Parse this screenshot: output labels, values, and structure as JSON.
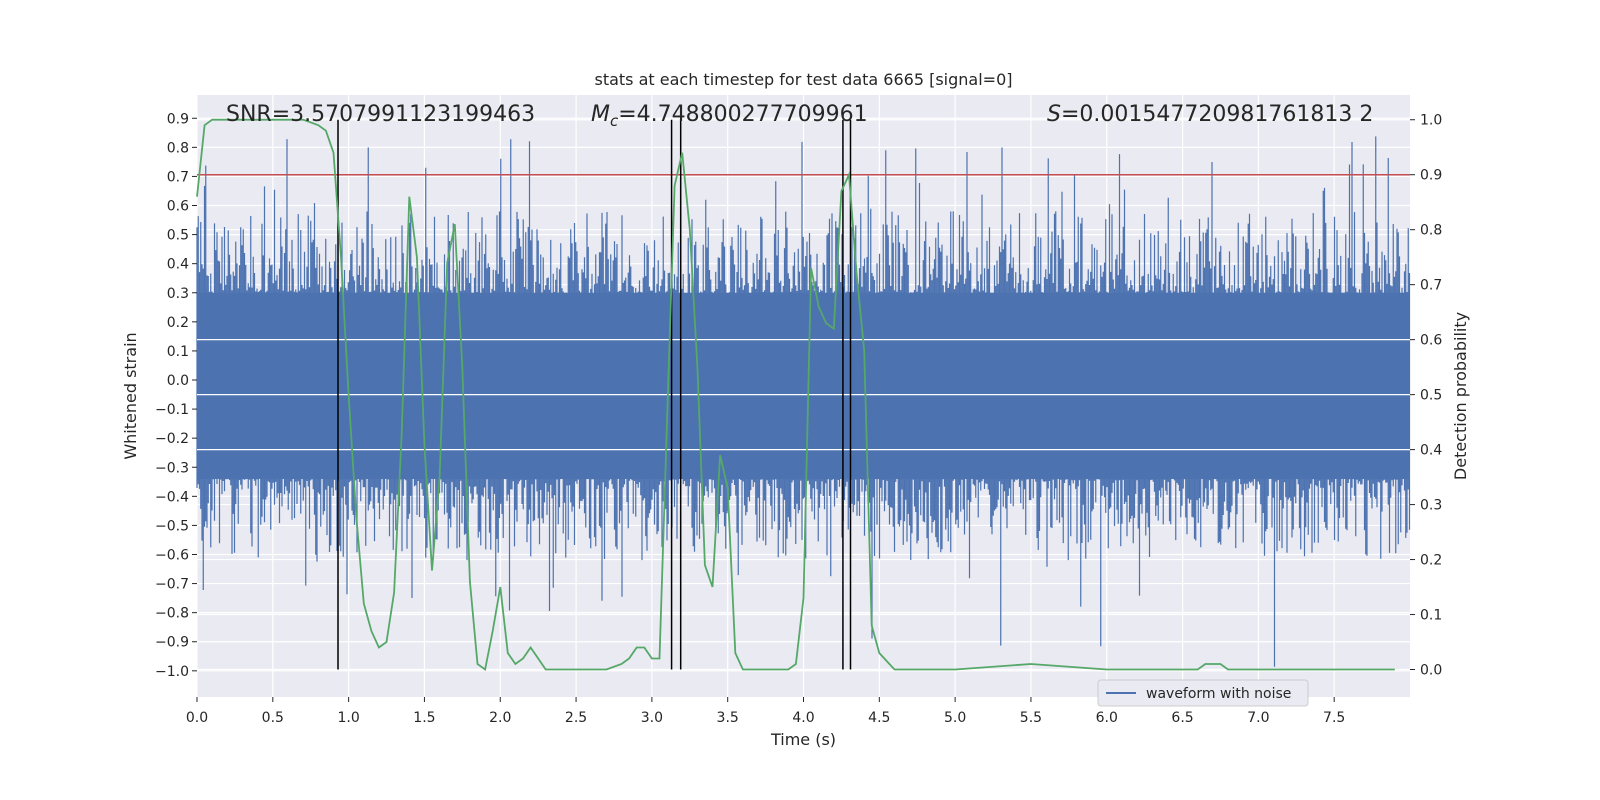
{
  "chart_data": {
    "type": "line",
    "title": "stats at each timestep for test data 6665 [signal=0]",
    "xlabel": "Time (s)",
    "ylabel": "Whitened strain",
    "y2label": "Detection probability",
    "xlim": [
      0.0,
      8.0
    ],
    "ylim": [
      -1.09,
      0.98
    ],
    "y2lim": [
      -0.05,
      1.045
    ],
    "xticks": [
      "0.0",
      "0.5",
      "1.0",
      "1.5",
      "2.0",
      "2.5",
      "3.0",
      "3.5",
      "4.0",
      "4.5",
      "5.0",
      "5.5",
      "6.0",
      "6.5",
      "7.0",
      "7.5"
    ],
    "yticks": [
      "0.9",
      "0.8",
      "0.7",
      "0.6",
      "0.5",
      "0.4",
      "0.3",
      "0.2",
      "0.1",
      "0.0",
      "-0.1",
      "-0.2",
      "-0.3",
      "-0.4",
      "-0.5",
      "-0.6",
      "-0.7",
      "-0.8",
      "-0.9",
      "-1.0"
    ],
    "y2ticks": [
      "1.0",
      "0.9",
      "0.8",
      "0.7",
      "0.6",
      "0.5",
      "0.4",
      "0.3",
      "0.2",
      "0.1",
      "0.0"
    ],
    "grid": true,
    "legend_position": "lower-right",
    "annotations": {
      "snr": "SNR=3.5707991123199463",
      "mc_prefix": "M",
      "mc_sub": "c",
      "mc_value": "=4.748800277709961",
      "s_prefix": "S",
      "s_value": "=0.001547720981761813 2"
    },
    "series": [
      {
        "name": "waveform with noise",
        "axis": "left",
        "color": "#4c72b0",
        "band_min": -0.34,
        "band_max": 0.3,
        "peak_max": 0.88,
        "trough_min": -1.0
      },
      {
        "axis": "right",
        "color": "#55a868",
        "x": [
          0.0,
          0.05,
          0.1,
          0.15,
          0.3,
          0.5,
          0.7,
          0.8,
          0.85,
          0.9,
          0.95,
          1.0,
          1.05,
          1.1,
          1.15,
          1.2,
          1.25,
          1.3,
          1.35,
          1.4,
          1.45,
          1.5,
          1.55,
          1.6,
          1.65,
          1.7,
          1.75,
          1.8,
          1.85,
          1.9,
          1.95,
          2.0,
          2.05,
          2.1,
          2.15,
          2.2,
          2.25,
          2.3,
          2.35,
          2.4,
          2.6,
          2.7,
          2.8,
          2.85,
          2.9,
          2.95,
          3.0,
          3.05,
          3.1,
          3.15,
          3.2,
          3.25,
          3.3,
          3.35,
          3.4,
          3.45,
          3.5,
          3.55,
          3.6,
          3.7,
          3.8,
          3.9,
          3.95,
          4.0,
          4.05,
          4.1,
          4.15,
          4.2,
          4.25,
          4.3,
          4.35,
          4.4,
          4.45,
          4.5,
          4.6,
          4.8,
          5.0,
          5.5,
          6.0,
          6.5,
          6.6,
          6.65,
          6.7,
          6.75,
          6.8,
          7.0,
          7.5,
          7.9
        ],
        "y": [
          0.86,
          0.99,
          1.0,
          1.0,
          1.0,
          1.0,
          1.0,
          0.99,
          0.98,
          0.94,
          0.75,
          0.5,
          0.28,
          0.12,
          0.07,
          0.04,
          0.05,
          0.14,
          0.43,
          0.86,
          0.75,
          0.41,
          0.18,
          0.35,
          0.74,
          0.81,
          0.55,
          0.16,
          0.01,
          0.0,
          0.07,
          0.15,
          0.03,
          0.01,
          0.02,
          0.04,
          0.02,
          0.0,
          0.0,
          0.0,
          0.0,
          0.0,
          0.01,
          0.02,
          0.04,
          0.04,
          0.02,
          0.02,
          0.45,
          0.88,
          0.94,
          0.8,
          0.55,
          0.19,
          0.15,
          0.39,
          0.33,
          0.03,
          0.0,
          0.0,
          0.0,
          0.0,
          0.01,
          0.13,
          0.73,
          0.66,
          0.63,
          0.62,
          0.87,
          0.9,
          0.72,
          0.58,
          0.08,
          0.03,
          0.0,
          0.0,
          0.0,
          0.01,
          0.0,
          0.0,
          0.0,
          0.01,
          0.01,
          0.01,
          0.0,
          0.0,
          0.0,
          0.0
        ]
      }
    ],
    "threshold": {
      "y2": 0.9,
      "color": "#c44e52"
    },
    "vlines": {
      "x": [
        0.93,
        3.13,
        3.19,
        4.26,
        4.31
      ],
      "y2_range": [
        0.0,
        1.0
      ],
      "color": "#000000"
    }
  }
}
